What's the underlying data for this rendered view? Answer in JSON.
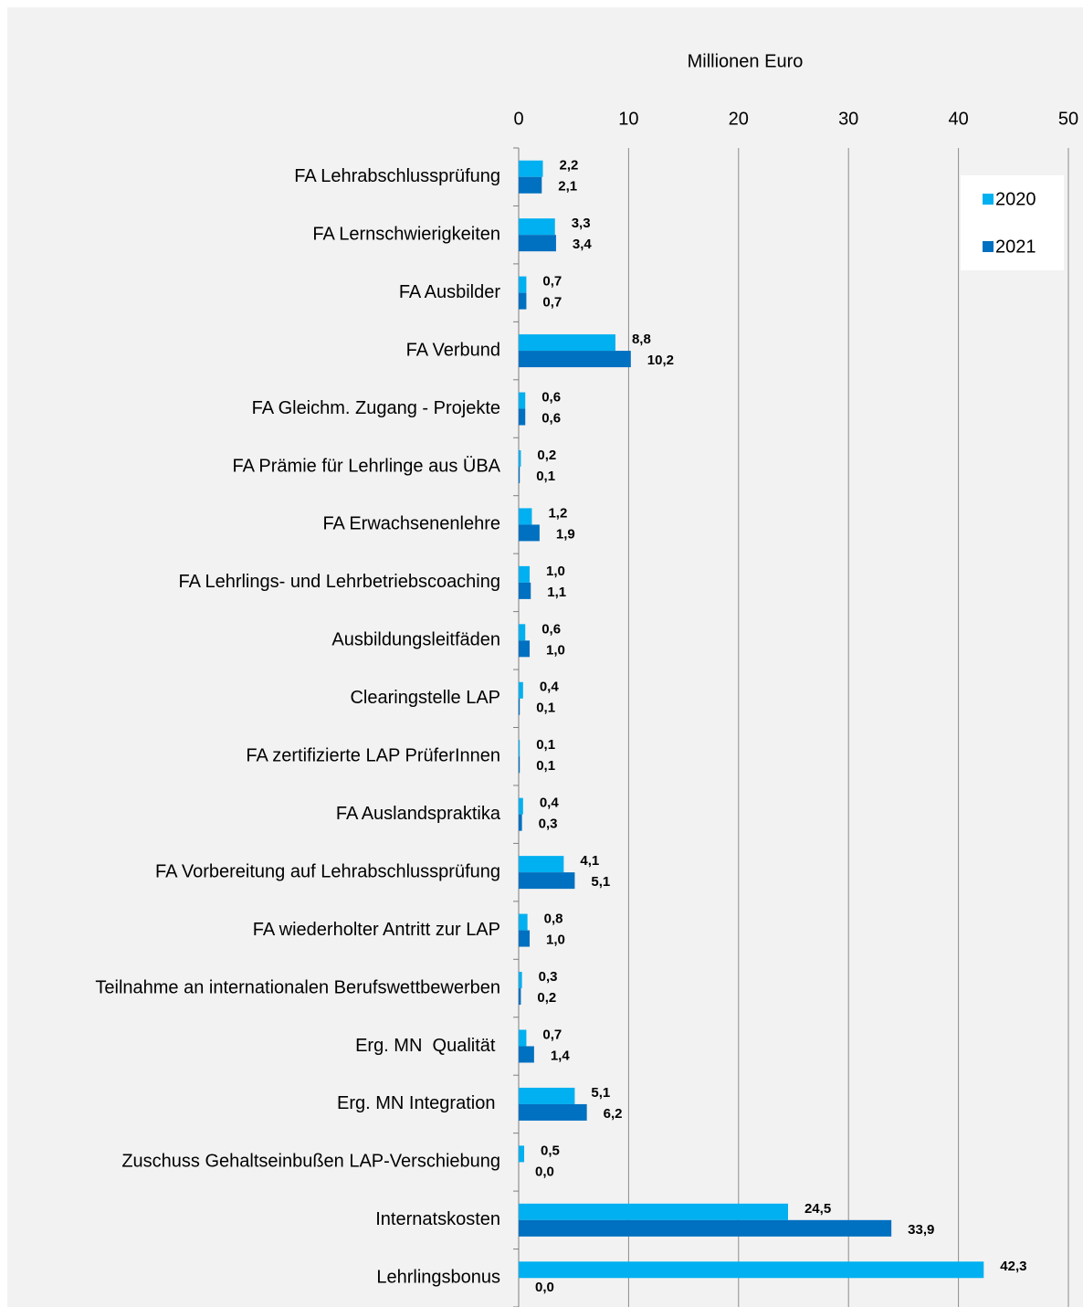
{
  "chart_data": {
    "type": "bar",
    "orientation": "horizontal",
    "x_axis_label": "Millionen Euro",
    "categories": [
      "FA Lehrabschlussprüfung",
      "FA Lernschwierigkeiten",
      "FA Ausbilder",
      "FA Verbund",
      "FA Gleichm. Zugang - Projekte",
      "FA Prämie für Lehrlinge aus ÜBA",
      "FA Erwachsenenlehre",
      "FA Lehrlings- und Lehrbetriebscoaching",
      "Ausbildungsleitfäden",
      "Clearingstelle LAP",
      "FA zertifizierte LAP PrüferInnen",
      "FA Auslandspraktika",
      "FA Vorbereitung auf Lehrabschlussprüfung",
      "FA wiederholter Antritt zur LAP",
      "Teilnahme an internationalen Berufswettbewerben",
      "Erg. MN  Qualität ",
      "Erg. MN Integration ",
      "Zuschuss Gehaltseinbußen LAP-Verschiebung",
      "Internatskosten",
      "Lehrlingsbonus"
    ],
    "series": [
      {
        "name": "2020",
        "color": "#00b0f0",
        "values": [
          2.2,
          3.3,
          0.7,
          8.8,
          0.6,
          0.2,
          1.2,
          1.0,
          0.6,
          0.4,
          0.1,
          0.4,
          4.1,
          0.8,
          0.3,
          0.7,
          5.1,
          0.5,
          24.5,
          42.3
        ],
        "value_labels": [
          "2,2",
          "3,3",
          "0,7",
          "8,8",
          "0,6",
          "0,2",
          "1,2",
          "1,0",
          "0,6",
          "0,4",
          "0,1",
          "0,4",
          "4,1",
          "0,8",
          "0,3",
          "0,7",
          "5,1",
          "0,5",
          "24,5",
          "42,3"
        ]
      },
      {
        "name": "2021",
        "color": "#0070c0",
        "values": [
          2.1,
          3.4,
          0.7,
          10.2,
          0.6,
          0.1,
          1.9,
          1.1,
          1.0,
          0.1,
          0.1,
          0.3,
          5.1,
          1.0,
          0.2,
          1.4,
          6.2,
          0.0,
          33.9,
          0.0
        ],
        "value_labels": [
          "2,1",
          "3,4",
          "0,7",
          "10,2",
          "0,6",
          "0,1",
          "1,9",
          "1,1",
          "1,0",
          "0,1",
          "0,1",
          "0,3",
          "5,1",
          "1,0",
          "0,2",
          "1,4",
          "6,2",
          "0,0",
          "33,9",
          "0,0"
        ]
      }
    ],
    "xlim": [
      0,
      50
    ],
    "xticks": [
      0,
      10,
      20,
      30,
      40,
      50
    ],
    "grid": true,
    "legend": "upper right"
  }
}
